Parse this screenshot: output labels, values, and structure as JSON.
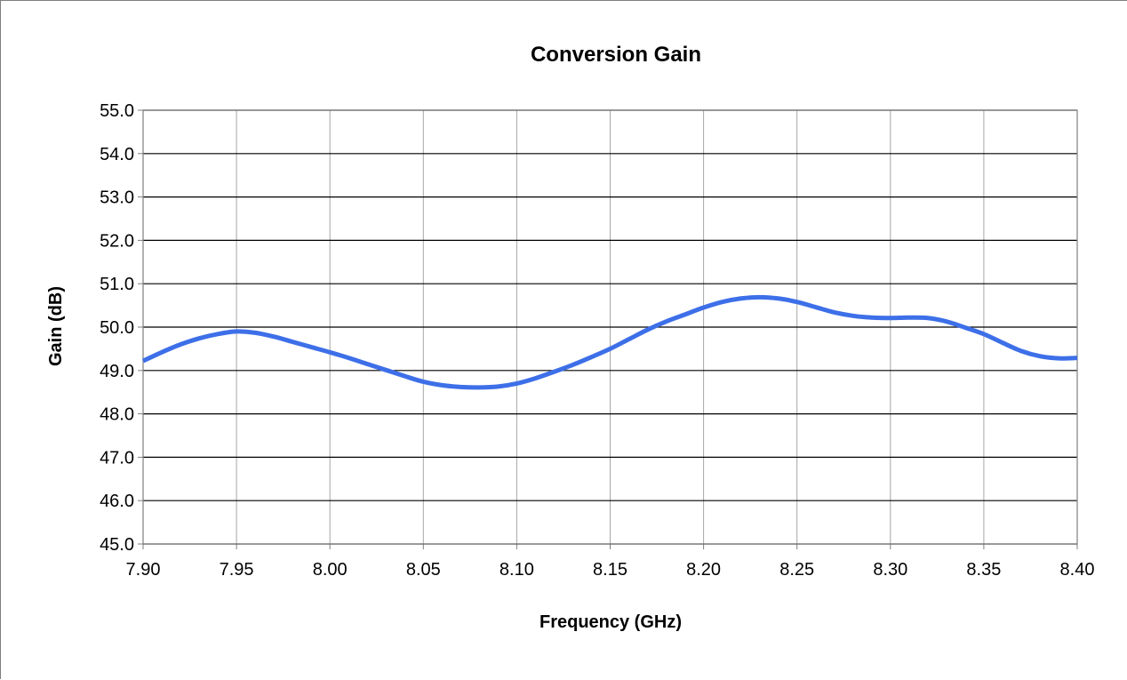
{
  "chart_data": {
    "type": "line",
    "title": "Conversion Gain",
    "xlabel": "Frequency (GHz)",
    "ylabel": "Gain (dB)",
    "xlim": [
      7.9,
      8.4
    ],
    "ylim": [
      45.0,
      55.0
    ],
    "x_ticks": [
      "7.90",
      "7.95",
      "8.00",
      "8.05",
      "8.10",
      "8.15",
      "8.20",
      "8.25",
      "8.30",
      "8.35",
      "8.40"
    ],
    "y_ticks": [
      "55.0",
      "54.0",
      "53.0",
      "52.0",
      "51.0",
      "50.0",
      "49.0",
      "48.0",
      "47.0",
      "46.0",
      "45.0"
    ],
    "grid": true,
    "legend": "none",
    "line_color": "#3d6fe8",
    "series": [
      {
        "x": [
          7.9,
          7.91,
          7.92,
          7.93,
          7.94,
          7.95,
          7.96,
          7.97,
          7.98,
          7.99,
          8.0,
          8.01,
          8.02,
          8.03,
          8.04,
          8.05,
          8.06,
          8.07,
          8.08,
          8.09,
          8.1,
          8.11,
          8.12,
          8.13,
          8.14,
          8.15,
          8.16,
          8.17,
          8.18,
          8.19,
          8.2,
          8.21,
          8.22,
          8.23,
          8.24,
          8.25,
          8.26,
          8.27,
          8.28,
          8.29,
          8.3,
          8.31,
          8.32,
          8.33,
          8.34,
          8.35,
          8.36,
          8.37,
          8.38,
          8.39,
          8.4
        ],
        "values": [
          49.22,
          49.42,
          49.6,
          49.74,
          49.84,
          49.9,
          49.87,
          49.78,
          49.66,
          49.54,
          49.42,
          49.29,
          49.15,
          49.01,
          48.87,
          48.74,
          48.66,
          48.62,
          48.61,
          48.63,
          48.7,
          48.82,
          48.97,
          49.13,
          49.31,
          49.5,
          49.72,
          49.94,
          50.13,
          50.29,
          50.45,
          50.58,
          50.66,
          50.69,
          50.66,
          50.58,
          50.46,
          50.34,
          50.26,
          50.22,
          50.21,
          50.22,
          50.21,
          50.13,
          49.99,
          49.84,
          49.64,
          49.45,
          49.33,
          49.28,
          49.29
        ]
      }
    ]
  }
}
